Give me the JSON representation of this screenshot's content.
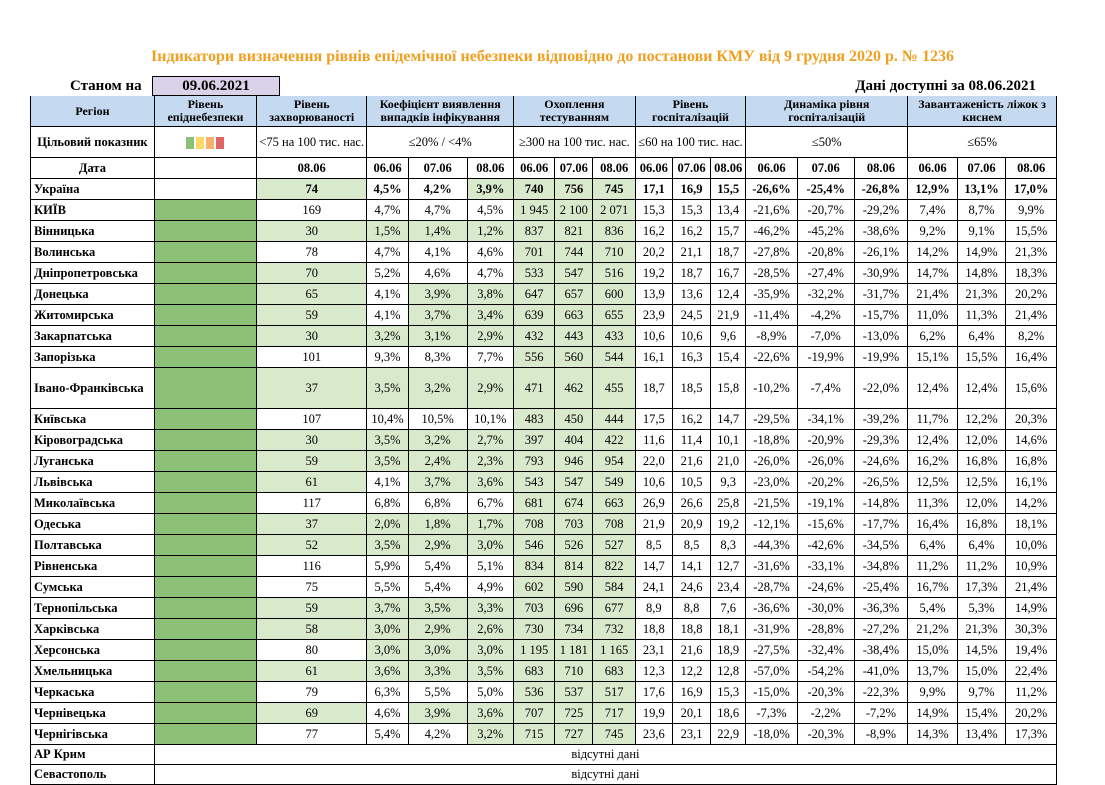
{
  "title": "Індикатори визначення рівнів епідемічної небезпеки відповідно до постанови КМУ від 9 грудня 2020 р. № 1236",
  "status_label": "Станом на",
  "status_date": "09.06.2021",
  "available_label": "Дані доступні за  08.06.2021",
  "headers": {
    "region": "Регіон",
    "level": "Рівень епіднебезпеки",
    "incidence": "Рівень захворюваності",
    "detection": "Коефіцієнт виявлення випадків інфікування",
    "testing": "Охоплення тестуванням",
    "hosp": "Рівень госпіталізацій",
    "dynamics": "Динаміка рівня госпіталізацій",
    "oxygen": "Завантаженість ліжок з киснем"
  },
  "targets": {
    "label": "Цільовий показник",
    "incidence": "<75 на 100 тис. нас.",
    "detection": "≤20% / <4%",
    "testing": "≥300 на 100 тис. нас.",
    "hosp": "≤60 на 100 тис. нас.",
    "dynamics": "≤50%",
    "oxygen": "≤65%"
  },
  "colors": {
    "swatches": [
      "#8dc077",
      "#ffd966",
      "#f6b26b",
      "#e06666"
    ]
  },
  "date_row": {
    "label": "Дата",
    "incidence_date": "08.06",
    "dates": [
      "06.06",
      "07.06",
      "08.06"
    ]
  },
  "rows": [
    {
      "region": "Україна",
      "inc": "74",
      "det": [
        "4,5%",
        "4,2%",
        "3,9%"
      ],
      "test": [
        "740",
        "756",
        "745"
      ],
      "hosp": [
        "17,1",
        "16,9",
        "15,5"
      ],
      "dyn": [
        "-26,6%",
        "-25,4%",
        "-26,8%"
      ],
      "oxy": [
        "12,9%",
        "13,1%",
        "17,0%"
      ]
    },
    {
      "region": "КИЇВ",
      "inc": "169",
      "det": [
        "4,7%",
        "4,7%",
        "4,5%"
      ],
      "test": [
        "1 945",
        "2 100",
        "2 071"
      ],
      "hosp": [
        "15,3",
        "15,3",
        "13,4"
      ],
      "dyn": [
        "-21,6%",
        "-20,7%",
        "-29,2%"
      ],
      "oxy": [
        "7,4%",
        "8,7%",
        "9,9%"
      ]
    },
    {
      "region": "Вінницька",
      "inc": "30",
      "det": [
        "1,5%",
        "1,4%",
        "1,2%"
      ],
      "test": [
        "837",
        "821",
        "836"
      ],
      "hosp": [
        "16,2",
        "16,2",
        "15,7"
      ],
      "dyn": [
        "-46,2%",
        "-45,2%",
        "-38,6%"
      ],
      "oxy": [
        "9,2%",
        "9,1%",
        "15,5%"
      ]
    },
    {
      "region": "Волинська",
      "inc": "78",
      "det": [
        "4,7%",
        "4,1%",
        "4,6%"
      ],
      "test": [
        "701",
        "744",
        "710"
      ],
      "hosp": [
        "20,2",
        "21,1",
        "18,7"
      ],
      "dyn": [
        "-27,8%",
        "-20,8%",
        "-26,1%"
      ],
      "oxy": [
        "14,2%",
        "14,9%",
        "21,3%"
      ]
    },
    {
      "region": "Дніпропетровська",
      "inc": "70",
      "det": [
        "5,2%",
        "4,6%",
        "4,7%"
      ],
      "test": [
        "533",
        "547",
        "516"
      ],
      "hosp": [
        "19,2",
        "18,7",
        "16,7"
      ],
      "dyn": [
        "-28,5%",
        "-27,4%",
        "-30,9%"
      ],
      "oxy": [
        "14,7%",
        "14,8%",
        "18,3%"
      ]
    },
    {
      "region": "Донецька",
      "inc": "65",
      "det": [
        "4,1%",
        "3,9%",
        "3,8%"
      ],
      "test": [
        "647",
        "657",
        "600"
      ],
      "hosp": [
        "13,9",
        "13,6",
        "12,4"
      ],
      "dyn": [
        "-35,9%",
        "-32,2%",
        "-31,7%"
      ],
      "oxy": [
        "21,4%",
        "21,3%",
        "20,2%"
      ]
    },
    {
      "region": "Житомирська",
      "inc": "59",
      "det": [
        "4,1%",
        "3,7%",
        "3,4%"
      ],
      "test": [
        "639",
        "663",
        "655"
      ],
      "hosp": [
        "23,9",
        "24,5",
        "21,9"
      ],
      "dyn": [
        "-11,4%",
        "-4,2%",
        "-15,7%"
      ],
      "oxy": [
        "11,0%",
        "11,3%",
        "21,4%"
      ]
    },
    {
      "region": "Закарпатська",
      "inc": "30",
      "det": [
        "3,2%",
        "3,1%",
        "2,9%"
      ],
      "test": [
        "432",
        "443",
        "433"
      ],
      "hosp": [
        "10,6",
        "10,6",
        "9,6"
      ],
      "dyn": [
        "-8,9%",
        "-7,0%",
        "-13,0%"
      ],
      "oxy": [
        "6,2%",
        "6,4%",
        "8,2%"
      ]
    },
    {
      "region": "Запорізька",
      "inc": "101",
      "det": [
        "9,3%",
        "8,3%",
        "7,7%"
      ],
      "test": [
        "556",
        "560",
        "544"
      ],
      "hosp": [
        "16,1",
        "16,3",
        "15,4"
      ],
      "dyn": [
        "-22,6%",
        "-19,9%",
        "-19,9%"
      ],
      "oxy": [
        "15,1%",
        "15,5%",
        "16,4%"
      ]
    },
    {
      "region": "Івано-Франківська",
      "inc": "37",
      "det": [
        "3,5%",
        "3,2%",
        "2,9%"
      ],
      "test": [
        "471",
        "462",
        "455"
      ],
      "hosp": [
        "18,7",
        "18,5",
        "15,8"
      ],
      "dyn": [
        "-10,2%",
        "-7,4%",
        "-22,0%"
      ],
      "oxy": [
        "12,4%",
        "12,4%",
        "15,6%"
      ]
    },
    {
      "region": "Київська",
      "inc": "107",
      "det": [
        "10,4%",
        "10,5%",
        "10,1%"
      ],
      "test": [
        "483",
        "450",
        "444"
      ],
      "hosp": [
        "17,5",
        "16,2",
        "14,7"
      ],
      "dyn": [
        "-29,5%",
        "-34,1%",
        "-39,2%"
      ],
      "oxy": [
        "11,7%",
        "12,2%",
        "20,3%"
      ]
    },
    {
      "region": "Кіровоградська",
      "inc": "30",
      "det": [
        "3,5%",
        "3,2%",
        "2,7%"
      ],
      "test": [
        "397",
        "404",
        "422"
      ],
      "hosp": [
        "11,6",
        "11,4",
        "10,1"
      ],
      "dyn": [
        "-18,8%",
        "-20,9%",
        "-29,3%"
      ],
      "oxy": [
        "12,4%",
        "12,0%",
        "14,6%"
      ]
    },
    {
      "region": "Луганська",
      "inc": "59",
      "det": [
        "3,5%",
        "2,4%",
        "2,3%"
      ],
      "test": [
        "793",
        "946",
        "954"
      ],
      "hosp": [
        "22,0",
        "21,6",
        "21,0"
      ],
      "dyn": [
        "-26,0%",
        "-26,0%",
        "-24,6%"
      ],
      "oxy": [
        "16,2%",
        "16,8%",
        "16,8%"
      ]
    },
    {
      "region": "Львівська",
      "inc": "61",
      "det": [
        "4,1%",
        "3,7%",
        "3,6%"
      ],
      "test": [
        "543",
        "547",
        "549"
      ],
      "hosp": [
        "10,6",
        "10,5",
        "9,3"
      ],
      "dyn": [
        "-23,0%",
        "-20,2%",
        "-26,5%"
      ],
      "oxy": [
        "12,5%",
        "12,5%",
        "16,1%"
      ]
    },
    {
      "region": "Миколаївська",
      "inc": "117",
      "det": [
        "6,8%",
        "6,8%",
        "6,7%"
      ],
      "test": [
        "681",
        "674",
        "663"
      ],
      "hosp": [
        "26,9",
        "26,6",
        "25,8"
      ],
      "dyn": [
        "-21,5%",
        "-19,1%",
        "-14,8%"
      ],
      "oxy": [
        "11,3%",
        "12,0%",
        "14,2%"
      ]
    },
    {
      "region": "Одеська",
      "inc": "37",
      "det": [
        "2,0%",
        "1,8%",
        "1,7%"
      ],
      "test": [
        "708",
        "703",
        "708"
      ],
      "hosp": [
        "21,9",
        "20,9",
        "19,2"
      ],
      "dyn": [
        "-12,1%",
        "-15,6%",
        "-17,7%"
      ],
      "oxy": [
        "16,4%",
        "16,8%",
        "18,1%"
      ]
    },
    {
      "region": "Полтавська",
      "inc": "52",
      "det": [
        "3,5%",
        "2,9%",
        "3,0%"
      ],
      "test": [
        "546",
        "526",
        "527"
      ],
      "hosp": [
        "8,5",
        "8,5",
        "8,3"
      ],
      "dyn": [
        "-44,3%",
        "-42,6%",
        "-34,5%"
      ],
      "oxy": [
        "6,4%",
        "6,4%",
        "10,0%"
      ]
    },
    {
      "region": "Рівненська",
      "inc": "116",
      "det": [
        "5,9%",
        "5,4%",
        "5,1%"
      ],
      "test": [
        "834",
        "814",
        "822"
      ],
      "hosp": [
        "14,7",
        "14,1",
        "12,7"
      ],
      "dyn": [
        "-31,6%",
        "-33,1%",
        "-34,8%"
      ],
      "oxy": [
        "11,2%",
        "11,2%",
        "10,9%"
      ]
    },
    {
      "region": "Сумська",
      "inc": "75",
      "det": [
        "5,5%",
        "5,4%",
        "4,9%"
      ],
      "test": [
        "602",
        "590",
        "584"
      ],
      "hosp": [
        "24,1",
        "24,6",
        "23,4"
      ],
      "dyn": [
        "-28,7%",
        "-24,6%",
        "-25,4%"
      ],
      "oxy": [
        "16,7%",
        "17,3%",
        "21,4%"
      ]
    },
    {
      "region": "Тернопільська",
      "inc": "59",
      "det": [
        "3,7%",
        "3,5%",
        "3,3%"
      ],
      "test": [
        "703",
        "696",
        "677"
      ],
      "hosp": [
        "8,9",
        "8,8",
        "7,6"
      ],
      "dyn": [
        "-36,6%",
        "-30,0%",
        "-36,3%"
      ],
      "oxy": [
        "5,4%",
        "5,3%",
        "14,9%"
      ]
    },
    {
      "region": "Харківська",
      "inc": "58",
      "det": [
        "3,0%",
        "2,9%",
        "2,6%"
      ],
      "test": [
        "730",
        "734",
        "732"
      ],
      "hosp": [
        "18,8",
        "18,8",
        "18,1"
      ],
      "dyn": [
        "-31,9%",
        "-28,8%",
        "-27,2%"
      ],
      "oxy": [
        "21,2%",
        "21,3%",
        "30,3%"
      ]
    },
    {
      "region": "Херсонська",
      "inc": "80",
      "det": [
        "3,0%",
        "3,0%",
        "3,0%"
      ],
      "test": [
        "1 195",
        "1 181",
        "1 165"
      ],
      "hosp": [
        "23,1",
        "21,6",
        "18,9"
      ],
      "dyn": [
        "-27,5%",
        "-32,4%",
        "-38,4%"
      ],
      "oxy": [
        "15,0%",
        "14,5%",
        "19,4%"
      ]
    },
    {
      "region": "Хмельницька",
      "inc": "61",
      "det": [
        "3,6%",
        "3,3%",
        "3,5%"
      ],
      "test": [
        "683",
        "710",
        "683"
      ],
      "hosp": [
        "12,3",
        "12,2",
        "12,8"
      ],
      "dyn": [
        "-57,0%",
        "-54,2%",
        "-41,0%"
      ],
      "oxy": [
        "13,7%",
        "15,0%",
        "22,4%"
      ]
    },
    {
      "region": "Черкаська",
      "inc": "79",
      "det": [
        "6,3%",
        "5,5%",
        "5,0%"
      ],
      "test": [
        "536",
        "537",
        "517"
      ],
      "hosp": [
        "17,6",
        "16,9",
        "15,3"
      ],
      "dyn": [
        "-15,0%",
        "-20,3%",
        "-22,3%"
      ],
      "oxy": [
        "9,9%",
        "9,7%",
        "11,2%"
      ]
    },
    {
      "region": "Чернівецька",
      "inc": "69",
      "det": [
        "4,6%",
        "3,9%",
        "3,6%"
      ],
      "test": [
        "707",
        "725",
        "717"
      ],
      "hosp": [
        "19,9",
        "20,1",
        "18,6"
      ],
      "dyn": [
        "-7,3%",
        "-2,2%",
        "-7,2%"
      ],
      "oxy": [
        "14,9%",
        "15,4%",
        "20,2%"
      ]
    },
    {
      "region": "Чернігівська",
      "inc": "77",
      "det": [
        "5,4%",
        "4,2%",
        "3,2%"
      ],
      "test": [
        "715",
        "727",
        "745"
      ],
      "hosp": [
        "23,6",
        "23,1",
        "22,9"
      ],
      "dyn": [
        "-18,0%",
        "-20,3%",
        "-8,9%"
      ],
      "oxy": [
        "14,3%",
        "13,4%",
        "17,3%"
      ]
    }
  ],
  "missing_rows": [
    {
      "region": "АР Крим",
      "note": "відсутні дані"
    },
    {
      "region": "Севастополь",
      "note": "відсутні дані"
    }
  ]
}
